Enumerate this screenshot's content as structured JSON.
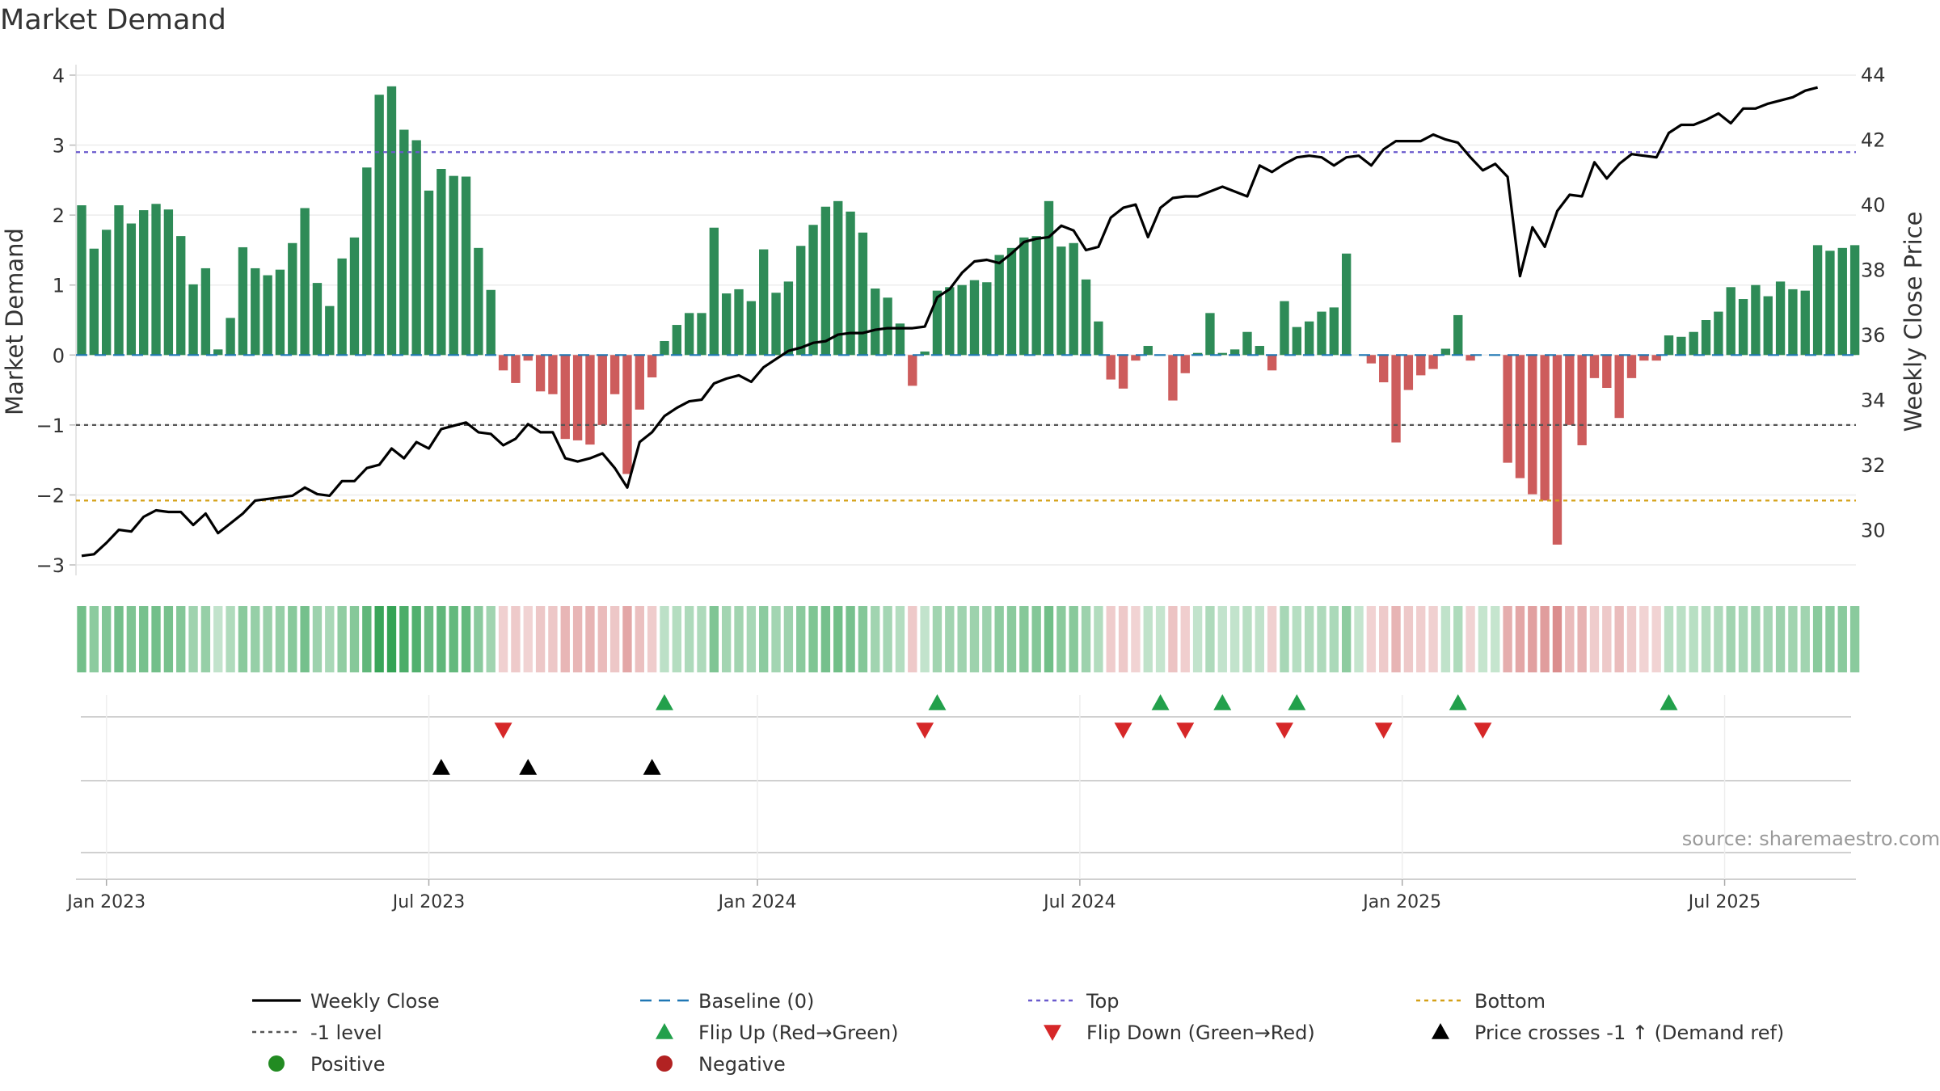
{
  "chart_data": {
    "type": "bar",
    "title": "Market Demand",
    "ylabel": "Market Demand",
    "y2label": "Weekly Close Price",
    "source": "source: sharemaestro.com",
    "ylim": [
      -3.15,
      4.15
    ],
    "y2lim": [
      28.6,
      44.3
    ],
    "yticks": [
      {
        "v": 4,
        "label": "4"
      },
      {
        "v": 3,
        "label": "3"
      },
      {
        "v": 2,
        "label": "2"
      },
      {
        "v": 1,
        "label": "1"
      },
      {
        "v": 0,
        "label": "0"
      },
      {
        "v": -1,
        "label": "−1"
      },
      {
        "v": -2,
        "label": "−2"
      },
      {
        "v": -3,
        "label": "−3"
      }
    ],
    "y2ticks": [
      {
        "v": 30,
        "label": "30"
      },
      {
        "v": 32,
        "label": "32"
      },
      {
        "v": 34,
        "label": "34"
      },
      {
        "v": 36,
        "label": "36"
      },
      {
        "v": 38,
        "label": "38"
      },
      {
        "v": 40,
        "label": "40"
      },
      {
        "v": 42,
        "label": "42"
      },
      {
        "v": 44,
        "label": "44"
      }
    ],
    "xticks": [
      {
        "i": 2,
        "label": "Jan 2023"
      },
      {
        "i": 28,
        "label": "Jul 2023"
      },
      {
        "i": 54.5,
        "label": "Jan 2024"
      },
      {
        "i": 80.5,
        "label": "Jul 2024"
      },
      {
        "i": 106.5,
        "label": "Jan 2025"
      },
      {
        "i": 132.5,
        "label": "Jul 2025"
      }
    ],
    "reference_lines": {
      "top": 2.9,
      "minus_one": -1,
      "bottom": -2.08,
      "baseline": 0
    },
    "colors": {
      "positive_bar": "#2e8b57",
      "negative_bar": "#cd5c5c",
      "price_line": "#000000",
      "top_line": "#6a5acd",
      "minus_one_line": "#555555",
      "bottom_line": "#d4a017",
      "baseline": "#1f77b4",
      "flip_up": "#22a04b",
      "flip_down": "#d62728",
      "cross_marker": "#000000",
      "positive_dot": "#228b22",
      "negative_dot": "#b22222"
    },
    "series": [
      {
        "name": "Market Demand",
        "values": [
          2.14,
          1.52,
          1.79,
          2.14,
          1.88,
          2.07,
          2.16,
          2.08,
          1.7,
          1.01,
          1.24,
          0.08,
          0.53,
          1.54,
          1.24,
          1.14,
          1.22,
          1.6,
          2.1,
          1.03,
          0.7,
          1.38,
          1.68,
          2.68,
          3.72,
          3.84,
          3.22,
          3.07,
          2.35,
          2.66,
          2.56,
          2.55,
          1.53,
          0.93,
          -0.22,
          -0.4,
          -0.08,
          -0.52,
          -0.56,
          -1.2,
          -1.22,
          -1.28,
          -1.0,
          -0.56,
          -1.7,
          -0.78,
          -0.32,
          0.2,
          0.43,
          0.6,
          0.6,
          1.82,
          0.88,
          0.94,
          0.77,
          1.51,
          0.89,
          1.05,
          1.56,
          1.86,
          2.12,
          2.2,
          2.05,
          1.75,
          0.95,
          0.82,
          0.45,
          -0.44,
          0.05,
          0.92,
          0.97,
          1.0,
          1.07,
          1.04,
          1.43,
          1.53,
          1.68,
          1.7,
          2.2,
          1.55,
          1.6,
          1.08,
          0.48,
          -0.35,
          -0.48,
          -0.08,
          0.13,
          0.0,
          -0.65,
          -0.26,
          0.03,
          0.6,
          0.03,
          0.08,
          0.33,
          0.13,
          -0.22,
          0.77,
          0.4,
          0.48,
          0.62,
          0.68,
          1.45,
          0.0,
          -0.12,
          -0.39,
          -1.25,
          -0.5,
          -0.29,
          -0.2,
          0.09,
          0.57,
          -0.08,
          0.0,
          0.0,
          -1.54,
          -1.76,
          -1.99,
          -2.08,
          -2.71,
          -1.0,
          -1.29,
          -0.33,
          -0.47,
          -0.9,
          -0.33,
          -0.08,
          -0.08,
          0.28,
          0.26,
          0.33,
          0.5,
          0.62,
          0.97,
          0.8,
          1.0,
          0.84,
          1.05,
          0.94,
          0.92,
          1.57,
          1.49,
          1.53,
          1.57
        ]
      },
      {
        "name": "Weekly Close",
        "values": [
          29.2,
          29.25,
          29.6,
          30.0,
          29.95,
          30.4,
          30.6,
          30.55,
          30.55,
          30.15,
          30.5,
          29.9,
          30.2,
          30.5,
          30.9,
          30.95,
          31.0,
          31.05,
          31.3,
          31.1,
          31.05,
          31.5,
          31.5,
          31.9,
          32.0,
          32.5,
          32.2,
          32.7,
          32.5,
          33.1,
          33.2,
          33.3,
          33.0,
          32.95,
          32.6,
          32.8,
          33.25,
          33.0,
          33.0,
          32.2,
          32.1,
          32.2,
          32.35,
          31.9,
          31.3,
          32.7,
          33.0,
          33.5,
          33.75,
          33.95,
          34.0,
          34.5,
          34.65,
          34.75,
          34.55,
          35.0,
          35.25,
          35.5,
          35.6,
          35.75,
          35.8,
          36.0,
          36.05,
          36.05,
          36.15,
          36.2,
          36.2,
          36.2,
          36.25,
          37.15,
          37.4,
          37.9,
          38.25,
          38.3,
          38.2,
          38.5,
          38.85,
          38.95,
          39.0,
          39.35,
          39.2,
          38.6,
          38.7,
          39.6,
          39.9,
          40.0,
          39.0,
          39.9,
          40.2,
          40.25,
          40.25,
          40.4,
          40.55,
          40.4,
          40.25,
          41.2,
          41.0,
          41.25,
          41.45,
          41.5,
          41.45,
          41.2,
          41.45,
          41.5,
          41.2,
          41.7,
          41.95,
          41.95,
          41.95,
          42.15,
          42.0,
          41.9,
          41.45,
          41.05,
          41.25,
          40.85,
          37.8,
          39.3,
          38.7,
          39.8,
          40.3,
          40.25,
          41.3,
          40.8,
          41.25,
          41.55,
          41.5,
          41.45,
          42.2,
          42.45,
          42.45,
          42.6,
          42.8,
          42.5,
          42.95,
          42.95,
          43.1,
          43.2,
          43.3,
          43.5,
          43.6
        ]
      }
    ],
    "flip_up_weeks": [
      47,
      69,
      87,
      92,
      98,
      111,
      128
    ],
    "flip_down_weeks": [
      34,
      68,
      84,
      89,
      97,
      105,
      113
    ],
    "price_cross_weeks": [
      29,
      36,
      46
    ],
    "legend": [
      {
        "key": "close",
        "label": "Weekly Close",
        "symbol": "line",
        "color": "#000000"
      },
      {
        "key": "baseline",
        "label": "Baseline (0)",
        "symbol": "dashed",
        "color": "#1f77b4"
      },
      {
        "key": "top",
        "label": "Top",
        "symbol": "dotted",
        "color": "#6a5acd"
      },
      {
        "key": "bottom",
        "label": "Bottom",
        "symbol": "dotted",
        "color": "#d4a017"
      },
      {
        "key": "minus_one",
        "label": "-1 level",
        "symbol": "dotted",
        "color": "#555555"
      },
      {
        "key": "flip_up",
        "label": "Flip Up (Red→Green)",
        "symbol": "tri-up",
        "color": "#22a04b"
      },
      {
        "key": "flip_down",
        "label": "Flip Down (Green→Red)",
        "symbol": "tri-down",
        "color": "#d62728"
      },
      {
        "key": "cross",
        "label": "Price crosses -1 ↑ (Demand ref)",
        "symbol": "tri-up",
        "color": "#000000"
      },
      {
        "key": "positive",
        "label": "Positive",
        "symbol": "dot",
        "color": "#228b22"
      },
      {
        "key": "negative",
        "label": "Negative",
        "symbol": "dot",
        "color": "#b22222"
      }
    ]
  }
}
